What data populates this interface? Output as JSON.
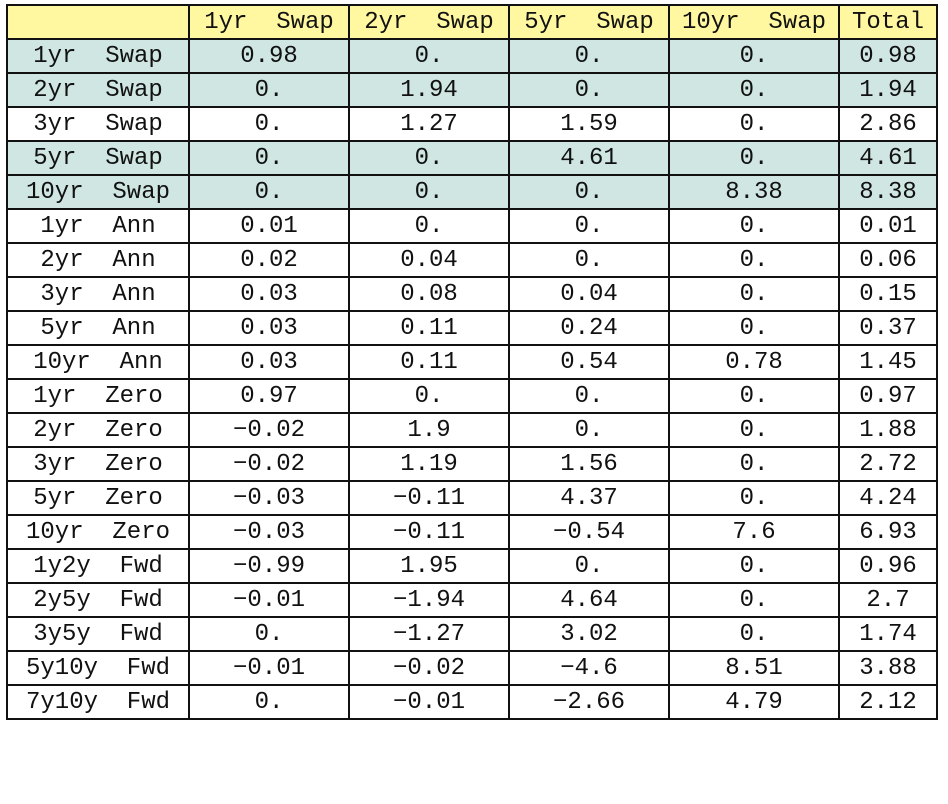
{
  "colors": {
    "header_bg": "#fff8a0",
    "highlight_row_bg": "#cfe6e3",
    "border": "#111111"
  },
  "columns": [
    "1yr  Swap",
    "2yr  Swap",
    "5yr  Swap",
    "10yr  Swap",
    "Total"
  ],
  "rows": [
    {
      "label": "1yr  Swap",
      "cells": [
        "0.98",
        "0.",
        "0.",
        "0.",
        "0.98"
      ],
      "highlight": true
    },
    {
      "label": "2yr  Swap",
      "cells": [
        "0.",
        "1.94",
        "0.",
        "0.",
        "1.94"
      ],
      "highlight": true
    },
    {
      "label": "3yr  Swap",
      "cells": [
        "0.",
        "1.27",
        "1.59",
        "0.",
        "2.86"
      ],
      "highlight": false
    },
    {
      "label": "5yr  Swap",
      "cells": [
        "0.",
        "0.",
        "4.61",
        "0.",
        "4.61"
      ],
      "highlight": true
    },
    {
      "label": "10yr  Swap",
      "cells": [
        "0.",
        "0.",
        "0.",
        "8.38",
        "8.38"
      ],
      "highlight": true
    },
    {
      "label": "1yr  Ann",
      "cells": [
        "0.01",
        "0.",
        "0.",
        "0.",
        "0.01"
      ],
      "highlight": false
    },
    {
      "label": "2yr  Ann",
      "cells": [
        "0.02",
        "0.04",
        "0.",
        "0.",
        "0.06"
      ],
      "highlight": false
    },
    {
      "label": "3yr  Ann",
      "cells": [
        "0.03",
        "0.08",
        "0.04",
        "0.",
        "0.15"
      ],
      "highlight": false
    },
    {
      "label": "5yr  Ann",
      "cells": [
        "0.03",
        "0.11",
        "0.24",
        "0.",
        "0.37"
      ],
      "highlight": false
    },
    {
      "label": "10yr  Ann",
      "cells": [
        "0.03",
        "0.11",
        "0.54",
        "0.78",
        "1.45"
      ],
      "highlight": false
    },
    {
      "label": "1yr  Zero",
      "cells": [
        "0.97",
        "0.",
        "0.",
        "0.",
        "0.97"
      ],
      "highlight": false
    },
    {
      "label": "2yr  Zero",
      "cells": [
        "−0.02",
        "1.9",
        "0.",
        "0.",
        "1.88"
      ],
      "highlight": false
    },
    {
      "label": "3yr  Zero",
      "cells": [
        "−0.02",
        "1.19",
        "1.56",
        "0.",
        "2.72"
      ],
      "highlight": false
    },
    {
      "label": "5yr  Zero",
      "cells": [
        "−0.03",
        "−0.11",
        "4.37",
        "0.",
        "4.24"
      ],
      "highlight": false
    },
    {
      "label": "10yr  Zero",
      "cells": [
        "−0.03",
        "−0.11",
        "−0.54",
        "7.6",
        "6.93"
      ],
      "highlight": false
    },
    {
      "label": "1y2y  Fwd",
      "cells": [
        "−0.99",
        "1.95",
        "0.",
        "0.",
        "0.96"
      ],
      "highlight": false
    },
    {
      "label": "2y5y  Fwd",
      "cells": [
        "−0.01",
        "−1.94",
        "4.64",
        "0.",
        "2.7"
      ],
      "highlight": false
    },
    {
      "label": "3y5y  Fwd",
      "cells": [
        "0.",
        "−1.27",
        "3.02",
        "0.",
        "1.74"
      ],
      "highlight": false
    },
    {
      "label": "5y10y  Fwd",
      "cells": [
        "−0.01",
        "−0.02",
        "−4.6",
        "8.51",
        "3.88"
      ],
      "highlight": false
    },
    {
      "label": "7y10y  Fwd",
      "cells": [
        "0.",
        "−0.01",
        "−2.66",
        "4.79",
        "2.12"
      ],
      "highlight": false
    }
  ]
}
